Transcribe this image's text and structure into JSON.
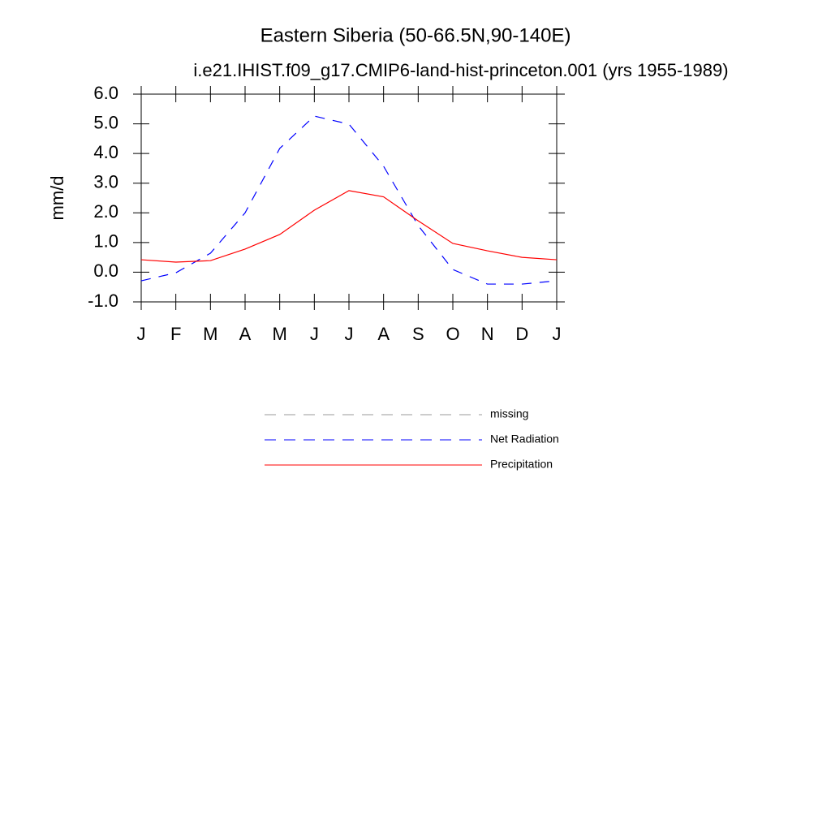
{
  "chart_data": {
    "type": "line",
    "title": "Eastern Siberia (50-66.5N,90-140E)",
    "subtitle": "i.e21.IHIST.f09_g17.CMIP6-land-hist-princeton.001 (yrs 1955-1989)",
    "y_label": "mm/d",
    "categories": [
      "J",
      "F",
      "M",
      "A",
      "M",
      "J",
      "J",
      "A",
      "S",
      "O",
      "N",
      "D",
      "J"
    ],
    "series": [
      {
        "name": "missing",
        "color": "#999999",
        "dash": true,
        "values": [
          null,
          null,
          null,
          null,
          null,
          null,
          null,
          null,
          null,
          null,
          null,
          null,
          null
        ]
      },
      {
        "name": "Net Radiation",
        "color": "#0000ff",
        "dash": true,
        "values": [
          -0.29,
          -0.02,
          0.64,
          2.0,
          4.17,
          5.26,
          4.99,
          3.57,
          1.57,
          0.09,
          -0.4,
          -0.4,
          -0.29
        ]
      },
      {
        "name": "Precipitation",
        "color": "#ff0000",
        "dash": false,
        "values": [
          0.42,
          0.34,
          0.39,
          0.78,
          1.27,
          2.09,
          2.75,
          2.54,
          1.73,
          0.97,
          0.72,
          0.5,
          0.42
        ]
      }
    ],
    "ylim": [
      -1,
      6
    ],
    "yticks": [
      {
        "value": 6,
        "label": "6.0"
      },
      {
        "value": 5,
        "label": "5.0"
      },
      {
        "value": 4,
        "label": "4.0"
      },
      {
        "value": 3,
        "label": "3.0"
      },
      {
        "value": 2,
        "label": "2.0"
      },
      {
        "value": 1,
        "label": "1.0"
      },
      {
        "value": 0,
        "label": "0.0"
      },
      {
        "value": -1,
        "label": "-1.0"
      }
    ]
  }
}
